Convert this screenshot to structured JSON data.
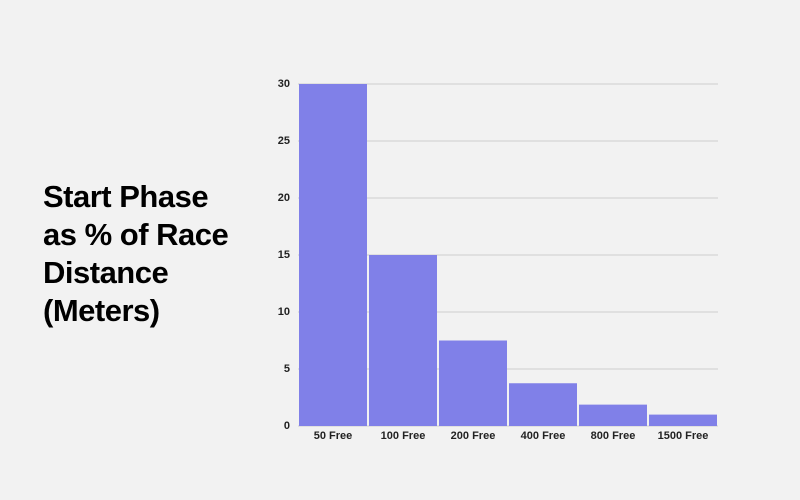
{
  "chart_data": {
    "type": "bar",
    "title": "Start Phase as % of Race Distance (Meters)",
    "categories": [
      "50 Free",
      "100 Free",
      "200 Free",
      "400 Free",
      "800 Free",
      "1500 Free"
    ],
    "values": [
      30,
      15,
      7.5,
      3.75,
      1.875,
      1
    ],
    "color": "#8080e8",
    "ylim": [
      0,
      30
    ],
    "yticks": [
      0,
      5,
      10,
      15,
      20,
      25,
      30
    ],
    "grid": true
  }
}
